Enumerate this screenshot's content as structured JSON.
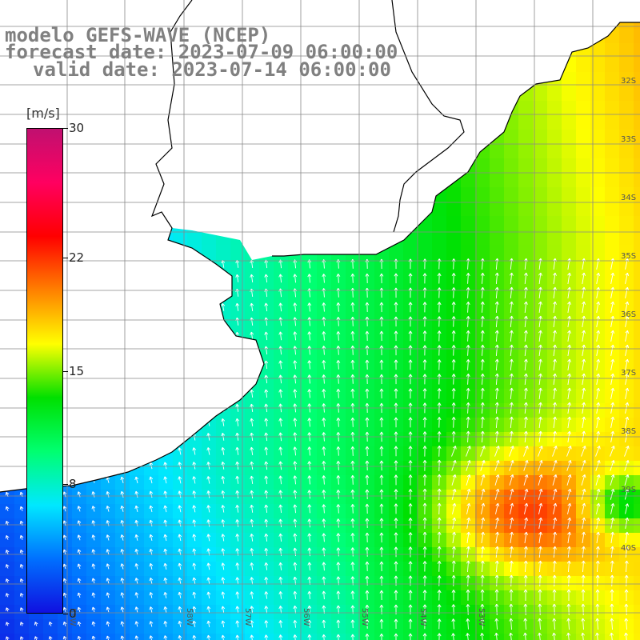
{
  "header": {
    "line1": "modelo GEFS-WAVE (NCEP)",
    "line2": "forecast date: 2023-07-09 06:00:00",
    "line3": "valid date: 2023-07-14 06:00:00"
  },
  "colorbar": {
    "units": "[m/s]",
    "min": 0,
    "max": 30,
    "ticks": [
      "0",
      "8",
      "15",
      "22",
      "30"
    ],
    "colors": [
      "#1010e0",
      "#0070ff",
      "#00e8ff",
      "#00ff70",
      "#00e000",
      "#ffff00",
      "#ff8000",
      "#ff0000",
      "#ff0060",
      "#c01070"
    ]
  },
  "map": {
    "lat_labels": [
      "32S",
      "33S",
      "34S",
      "35S",
      "36S",
      "37S",
      "38S",
      "39S",
      "40S"
    ],
    "lon_labels": [
      "59W",
      "58W",
      "57W",
      "56W",
      "55W",
      "54W",
      "53W"
    ],
    "colors": {
      "land": "#ffffff",
      "grid": "#888888",
      "coast": "#000000",
      "arrow": "#ffffff"
    }
  }
}
